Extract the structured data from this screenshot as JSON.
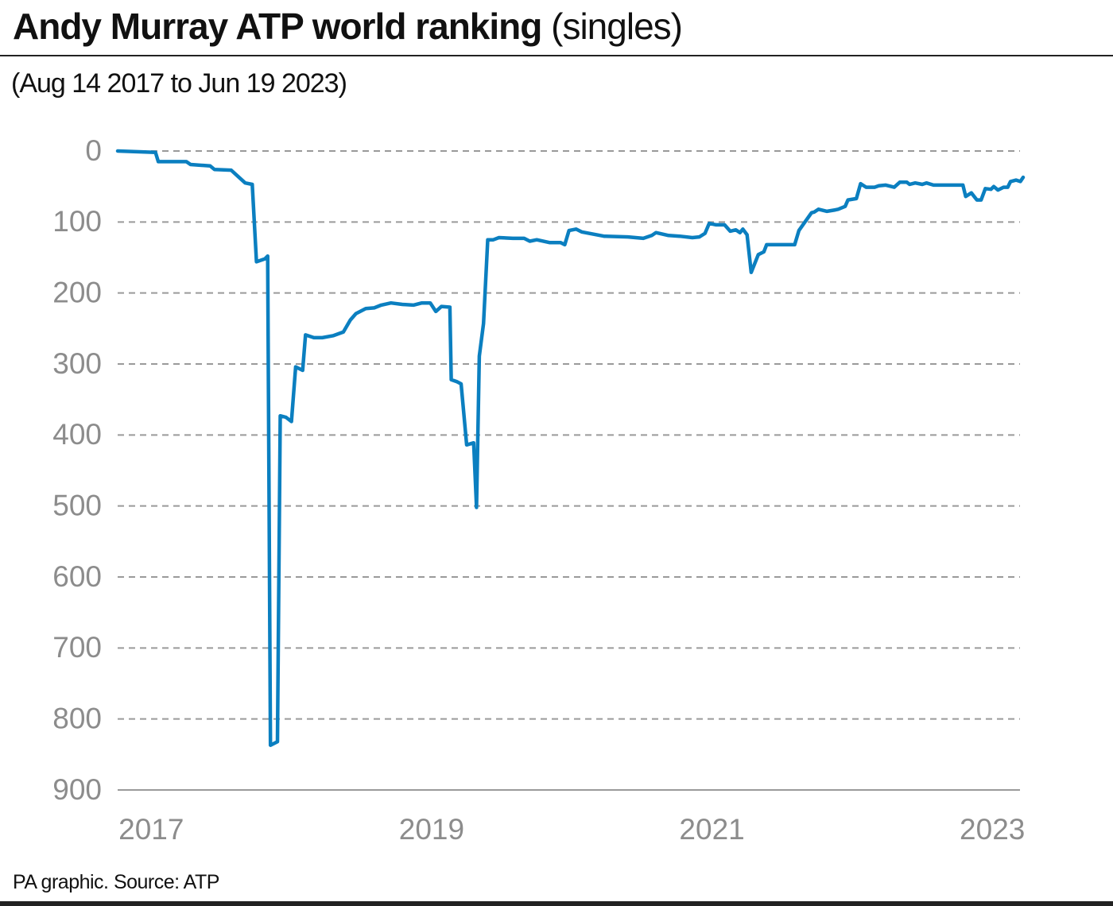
{
  "chart_data": {
    "type": "line",
    "title": "Andy Murray ATP world ranking",
    "title_note": "(singles)",
    "subtitle": "(Aug 14 2017 to Jun 19 2023)",
    "source": "PA graphic. Source: ATP",
    "color": "#0b7fc0",
    "grid": true,
    "y_inverted": true,
    "xlim": [
      2016.76,
      2023.22
    ],
    "xticks": [
      2017,
      2019,
      2021,
      2023
    ],
    "ylim": [
      0,
      900
    ],
    "yticks": [
      0,
      100,
      200,
      300,
      400,
      500,
      600,
      700,
      800,
      900
    ],
    "x": [
      2016.76,
      2017.03,
      2017.05,
      2017.25,
      2017.28,
      2017.42,
      2017.45,
      2017.57,
      2017.62,
      2017.67,
      2017.72,
      2017.75,
      2017.81,
      2017.83,
      2017.85,
      2017.9,
      2017.92,
      2017.96,
      2018.0,
      2018.03,
      2018.08,
      2018.1,
      2018.16,
      2018.22,
      2018.3,
      2018.37,
      2018.42,
      2018.46,
      2018.53,
      2018.59,
      2018.64,
      2018.71,
      2018.79,
      2018.87,
      2018.93,
      2018.99,
      2019.03,
      2019.07,
      2019.13,
      2019.14,
      2019.18,
      2019.21,
      2019.25,
      2019.3,
      2019.32,
      2019.34,
      2019.37,
      2019.4,
      2019.44,
      2019.48,
      2019.58,
      2019.66,
      2019.7,
      2019.75,
      2019.84,
      2019.92,
      2019.95,
      2019.98,
      2020.03,
      2020.07,
      2020.23,
      2020.4,
      2020.51,
      2020.57,
      2020.6,
      2020.69,
      2020.77,
      2020.86,
      2020.91,
      2020.95,
      2020.98,
      2021.03,
      2021.09,
      2021.13,
      2021.17,
      2021.2,
      2021.22,
      2021.25,
      2021.28,
      2021.33,
      2021.37,
      2021.39,
      2021.59,
      2021.62,
      2021.66,
      2021.71,
      2021.73,
      2021.76,
      2021.82,
      2021.88,
      2021.9,
      2021.95,
      2021.97,
      2022.03,
      2022.06,
      2022.1,
      2022.16,
      2022.19,
      2022.24,
      2022.3,
      2022.34,
      2022.39,
      2022.41,
      2022.45,
      2022.5,
      2022.53,
      2022.58,
      2022.79,
      2022.81,
      2022.85,
      2022.89,
      2022.92,
      2022.95,
      2022.99,
      2023.01,
      2023.04,
      2023.08,
      2023.11,
      2023.13,
      2023.17,
      2023.2,
      2023.22
    ],
    "values": [
      0,
      2,
      15,
      15,
      19,
      21,
      26,
      27,
      36,
      45,
      47,
      156,
      152,
      148,
      837,
      832,
      373,
      375,
      381,
      304,
      309,
      259,
      263,
      263,
      260,
      255,
      238,
      229,
      222,
      221,
      217,
      214,
      216,
      217,
      214,
      214,
      226,
      219,
      220,
      322,
      325,
      328,
      414,
      411,
      502,
      289,
      243,
      125,
      125,
      122,
      123,
      123,
      127,
      125,
      129,
      129,
      132,
      112,
      110,
      114,
      120,
      121,
      123,
      119,
      115,
      119,
      120,
      122,
      121,
      116,
      102,
      104,
      104,
      113,
      111,
      115,
      110,
      118,
      171,
      146,
      142,
      132,
      132,
      112,
      101,
      87,
      86,
      82,
      85,
      83,
      82,
      78,
      69,
      67,
      46,
      51,
      51,
      49,
      48,
      51,
      44,
      44,
      47,
      45,
      47,
      45,
      48,
      48,
      64,
      59,
      69,
      69,
      53,
      54,
      50,
      55,
      51,
      51,
      43,
      41,
      43,
      37
    ]
  }
}
